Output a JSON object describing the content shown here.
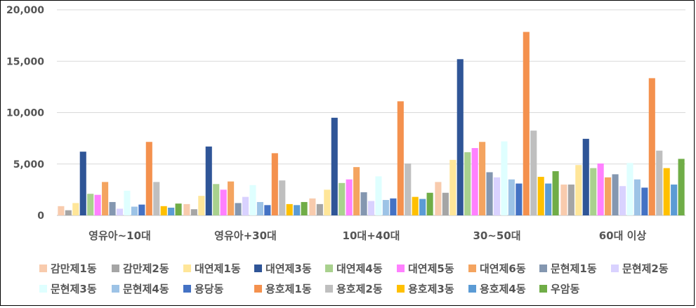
{
  "chart_data": {
    "type": "bar",
    "title": "",
    "xlabel": "",
    "ylabel": "",
    "ylim": [
      0,
      20000
    ],
    "yticks": [
      0,
      5000,
      10000,
      15000,
      20000
    ],
    "ytick_labels": [
      "0",
      "5,000",
      "10,000",
      "15,000",
      "20,000"
    ],
    "grid": true,
    "legend_position": "bottom",
    "categories": [
      "영유아~10대",
      "영유아+30대",
      "10대+40대",
      "30~50대",
      "60대 이상"
    ],
    "series": [
      {
        "name": "감만제1동",
        "color": "#F8CBAD",
        "values": [
          900,
          1100,
          1650,
          3250,
          3000
        ]
      },
      {
        "name": "감만제2동",
        "color": "#A5A5A5",
        "values": [
          500,
          600,
          1100,
          2200,
          3000
        ]
      },
      {
        "name": "대연제1동",
        "color": "#FFE699",
        "values": [
          1200,
          1900,
          2500,
          5400,
          4900
        ]
      },
      {
        "name": "대연제3동",
        "color": "#2F5597",
        "values": [
          6200,
          6700,
          9500,
          15200,
          7450
        ]
      },
      {
        "name": "대연제4동",
        "color": "#A9D18E",
        "values": [
          2100,
          3050,
          3150,
          6150,
          4600
        ]
      },
      {
        "name": "대연제5동",
        "color": "#FF80FF",
        "values": [
          2000,
          2500,
          3500,
          6550,
          5050
        ]
      },
      {
        "name": "대연제6동",
        "color": "#F4A460",
        "values": [
          3250,
          3300,
          4700,
          7150,
          3700
        ]
      },
      {
        "name": "문현제1동",
        "color": "#8497B0",
        "values": [
          1300,
          1200,
          2250,
          4200,
          4000
        ]
      },
      {
        "name": "문현제2동",
        "color": "#D9D2FF",
        "values": [
          650,
          1800,
          1400,
          3700,
          2850
        ]
      },
      {
        "name": "문현제3동",
        "color": "#DFFFFF",
        "values": [
          2400,
          2950,
          3800,
          7200,
          5100
        ]
      },
      {
        "name": "문현제4동",
        "color": "#9DC3E6",
        "values": [
          850,
          1300,
          1500,
          3500,
          3500
        ]
      },
      {
        "name": "용당동",
        "color": "#4472C4",
        "values": [
          1050,
          1000,
          1650,
          3100,
          2700
        ]
      },
      {
        "name": "용호제1동",
        "color": "#F4914E",
        "values": [
          7150,
          6050,
          11100,
          17850,
          13350
        ]
      },
      {
        "name": "용호제2동",
        "color": "#BFBFBF",
        "values": [
          3250,
          3400,
          5050,
          8250,
          6300
        ]
      },
      {
        "name": "용호제3동",
        "color": "#FFC000",
        "values": [
          900,
          1100,
          1800,
          3750,
          4600
        ]
      },
      {
        "name": "용호제4동",
        "color": "#5B9BD5",
        "values": [
          750,
          1000,
          1600,
          3100,
          3000
        ]
      },
      {
        "name": "우암동",
        "color": "#70AD47",
        "values": [
          1150,
          1300,
          2200,
          4300,
          5500
        ]
      }
    ]
  }
}
